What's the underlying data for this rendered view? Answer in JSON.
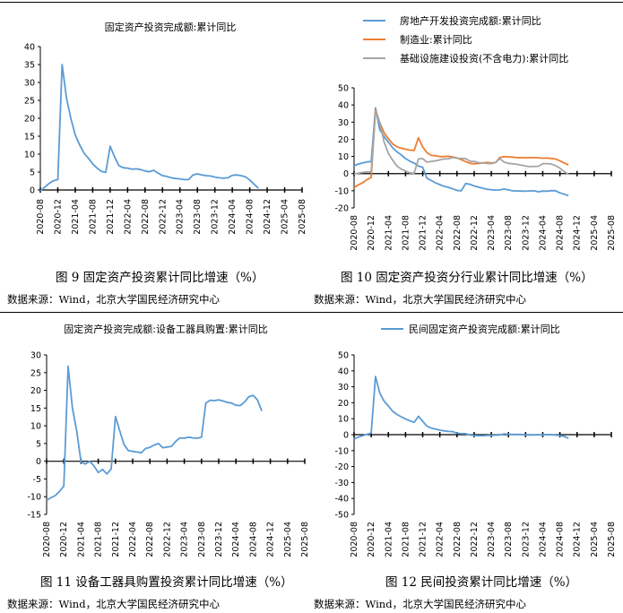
{
  "captions": {
    "fig9": "图 9  固定资产投资累计同比增速（%）",
    "fig10": "图 10 固定资产投资分行业累计同比增速（%）",
    "fig11": "图 11 设备工器具购置投资累计同比增速（%）",
    "fig12": "图 12 民间投资累计同比增速（%）"
  },
  "source_text": "数据来源：Wind，北京大学国民经济研究中心",
  "x_ticks": [
    "2020-08",
    "2020-12",
    "2021-04",
    "2021-08",
    "2021-12",
    "2022-04",
    "2022-08",
    "2022-12",
    "2023-04",
    "2023-08",
    "2023-12",
    "2024-04",
    "2024-08",
    "2024-12",
    "2025-04",
    "2025-08"
  ],
  "colors": {
    "blue": "#5b9bd5",
    "orange": "#ed7d31",
    "gray": "#a5a5a5"
  },
  "chart_data": [
    {
      "type": "line",
      "id": "fig9",
      "title": "固定资产投资完成额:累计同比",
      "ylim": [
        0,
        40
      ],
      "yticks": [
        0,
        5,
        10,
        15,
        20,
        25,
        30,
        35,
        40
      ],
      "x_start": "2020-08",
      "series": [
        {
          "color": "#5b9bd5",
          "values": [
            -0.3,
            0.8,
            1.8,
            2.6,
            2.9,
            35.0,
            25.6,
            19.9,
            15.4,
            12.6,
            10.3,
            8.9,
            7.3,
            6.1,
            5.2,
            4.9,
            12.2,
            9.3,
            6.8,
            6.2,
            6.1,
            5.8,
            5.9,
            5.7,
            5.3,
            5.1,
            5.5,
            4.7,
            4.0,
            3.8,
            3.4,
            3.2,
            3.1,
            2.9,
            2.9,
            4.2,
            4.5,
            4.2,
            4.0,
            3.9,
            3.6,
            3.4,
            3.3,
            3.4,
            4.1,
            4.2,
            4.0,
            3.7,
            2.8,
            1.6,
            0.5
          ]
        }
      ]
    },
    {
      "type": "line",
      "id": "fig10",
      "title": "",
      "ylim": [
        -20,
        50
      ],
      "yticks": [
        -20,
        -10,
        0,
        10,
        20,
        30,
        40,
        50
      ],
      "x_start": "2020-08",
      "series": [
        {
          "name": "房地产开发投资完成额:累计同比",
          "color": "#5b9bd5",
          "values": [
            4.6,
            5.6,
            6.3,
            6.8,
            7.0,
            38.3,
            25.6,
            21.6,
            18.3,
            15.0,
            12.7,
            10.9,
            8.8,
            7.2,
            6.1,
            4.4,
            3.7,
            -2.7,
            -4.0,
            -5.4,
            -6.4,
            -7.4,
            -8.0,
            -8.8,
            -9.8,
            -10.0,
            -5.8,
            -6.2,
            -7.2,
            -7.9,
            -8.5,
            -9.1,
            -9.4,
            -9.6,
            -9.5,
            -9.0,
            -9.5,
            -10.1,
            -10.1,
            -10.2,
            -10.3,
            -10.1,
            -10.1,
            -10.6,
            -10.2,
            -10.3,
            -9.9,
            -10.0,
            -11.2,
            -12.0,
            -12.9
          ]
        },
        {
          "name": "制造业:累计同比",
          "color": "#ed7d31",
          "values": [
            -8.1,
            -6.5,
            -5.3,
            -3.5,
            -2.2,
            37.3,
            29.8,
            23.8,
            20.4,
            17.3,
            15.7,
            14.8,
            14.2,
            13.7,
            13.5,
            20.9,
            15.6,
            12.2,
            10.6,
            10.4,
            9.9,
            10.0,
            10.1,
            9.7,
            9.1,
            8.1,
            7.0,
            6.0,
            5.7,
            5.9,
            6.2,
            6.5,
            6.2,
            6.5,
            9.4,
            9.9,
            9.7,
            9.6,
            9.3,
            9.3,
            9.2,
            9.3,
            9.3,
            9.2,
            9.0,
            9.1,
            8.8,
            8.5,
            7.5,
            6.2,
            5.1
          ]
        },
        {
          "name": "基础设施建设投资(不含电力):累计同比",
          "color": "#a5a5a5",
          "values": [
            -0.3,
            0.2,
            0.7,
            1.0,
            0.9,
            36.6,
            29.7,
            18.4,
            11.8,
            7.8,
            4.4,
            2.6,
            1.5,
            0.4,
            0.2,
            8.5,
            8.8,
            6.7,
            7.1,
            7.4,
            8.0,
            8.6,
            8.7,
            9.4,
            9.0,
            8.8,
            8.8,
            7.2,
            7.1,
            6.4,
            6.2,
            5.9,
            5.8,
            6.5,
            8.8,
            6.7,
            6.0,
            5.7,
            5.4,
            4.9,
            4.4,
            4.1,
            4.2,
            4.3,
            5.8,
            5.8,
            5.6,
            4.6,
            3.2,
            1.2,
            -0.4
          ]
        }
      ]
    },
    {
      "type": "line",
      "id": "fig11",
      "title": "固定资产投资完成额:设备工器具购置:累计同比",
      "ylim": [
        -15,
        30
      ],
      "yticks": [
        -15,
        -10,
        -5,
        0,
        5,
        10,
        15,
        20,
        25,
        30
      ],
      "x_start": "2020-08",
      "series": [
        {
          "color": "#5b9bd5",
          "values": [
            -11.0,
            -10.3,
            -9.7,
            -8.5,
            -7.0,
            26.8,
            15.0,
            8.5,
            -0.2,
            -0.8,
            0.0,
            -1.3,
            -3.2,
            -2.3,
            -3.6,
            -2.2,
            12.6,
            8.6,
            4.7,
            3.0,
            2.8,
            2.6,
            2.4,
            3.6,
            3.9,
            4.6,
            5.0,
            3.8,
            4.0,
            4.2,
            5.6,
            6.6,
            6.5,
            6.8,
            6.6,
            6.5,
            6.8,
            16.4,
            17.2,
            17.1,
            17.3,
            17.0,
            16.6,
            16.4,
            15.8,
            15.7,
            16.7,
            18.2,
            18.6,
            17.3,
            14.2
          ]
        }
      ]
    },
    {
      "type": "line",
      "id": "fig12",
      "title": "民间固定资产投资完成额:累计同比",
      "ylim": [
        -50,
        50
      ],
      "yticks": [
        -50,
        -40,
        -30,
        -20,
        -10,
        0,
        10,
        20,
        30,
        40,
        50
      ],
      "x_start": "2020-08",
      "series": [
        {
          "color": "#5b9bd5",
          "values": [
            -2.8,
            -1.5,
            -0.7,
            0.2,
            1.0,
            36.4,
            26.0,
            21.0,
            18.0,
            14.6,
            12.7,
            11.2,
            9.8,
            8.7,
            7.7,
            11.5,
            8.4,
            5.3,
            4.1,
            3.5,
            2.8,
            2.4,
            2.0,
            1.9,
            0.9,
            0.6,
            0.6,
            -0.2,
            -0.5,
            -0.6,
            -0.6,
            -0.5,
            -0.4,
            -0.3,
            -0.2,
            0.5,
            0.3,
            0.1,
            0.2,
            0.1,
            -0.2,
            -0.1,
            -0.2,
            -0.1,
            -0.1,
            0.1,
            -0.1,
            -0.3,
            -0.5,
            -1.1,
            -2.3
          ]
        }
      ]
    }
  ]
}
